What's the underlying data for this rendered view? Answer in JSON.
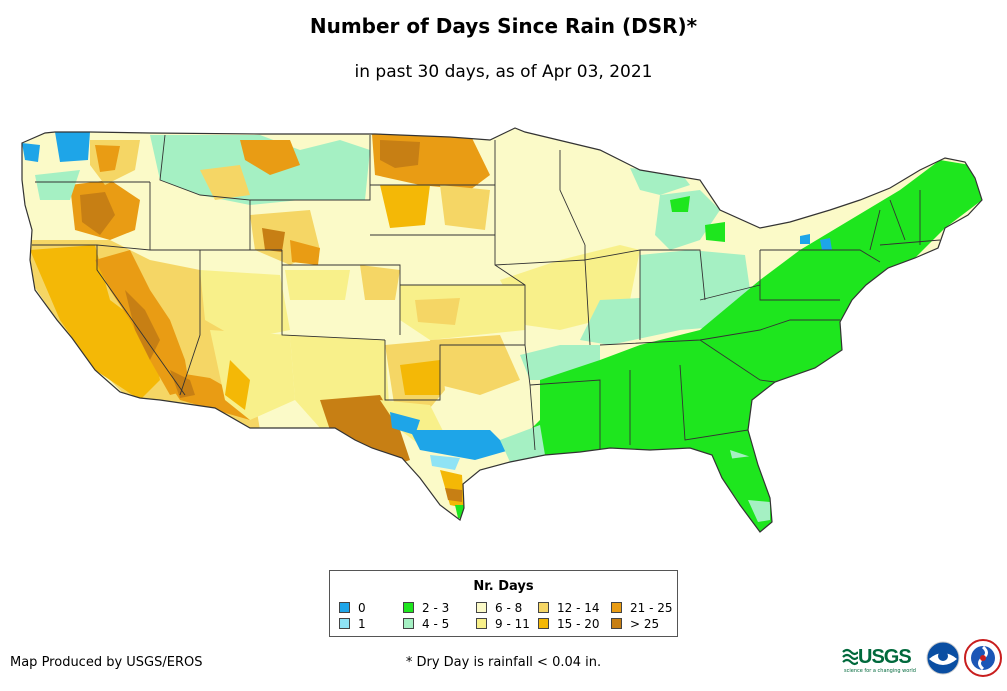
{
  "title": "Number of Days Since Rain (DSR)*",
  "subtitle": "in past 30 days, as of Apr 03, 2021",
  "legend": {
    "title": "Nr. Days",
    "items": [
      {
        "label": "0",
        "color": "#1ea5e8"
      },
      {
        "label": "1",
        "color": "#8fe3f5"
      },
      {
        "label": "2 - 3",
        "color": "#1ee61e"
      },
      {
        "label": "4 - 5",
        "color": "#a5f0c3"
      },
      {
        "label": "6 - 8",
        "color": "#fbfac8"
      },
      {
        "label": "9 - 11",
        "color": "#f8f08a"
      },
      {
        "label": "12 - 14",
        "color": "#f5d665"
      },
      {
        "label": "15 - 20",
        "color": "#f4b806"
      },
      {
        "label": "21 - 25",
        "color": "#e99c14"
      },
      {
        "label": "> 25",
        "color": "#c77f14"
      }
    ]
  },
  "credit": "Map Produced by USGS/EROS",
  "footnote": "* Dry Day is rainfall < 0.04 in.",
  "logos": {
    "usgs_word": "USGS",
    "usgs_tagline": "science for a changing world",
    "noaa_icon": "noaa-logo-icon",
    "nws_icon": "nws-logo-icon"
  }
}
